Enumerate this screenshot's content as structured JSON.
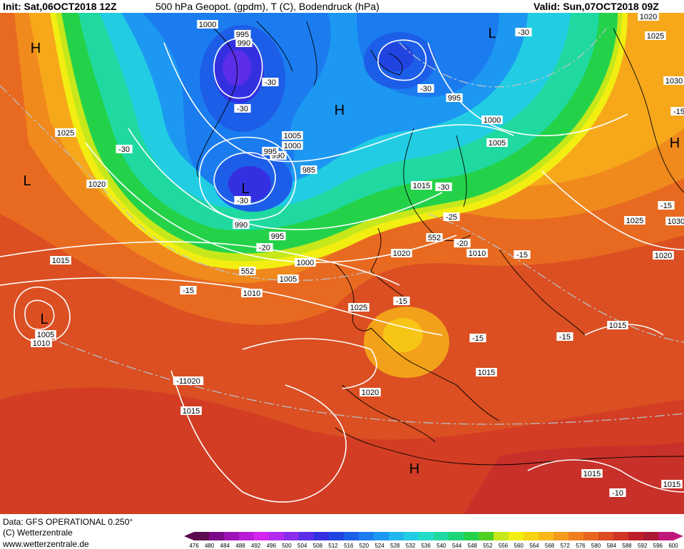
{
  "header": {
    "init": "Init: Sat,06OCT2018 12Z",
    "title": "500 hPa Geopot. (gpdm), T (C), Bodendruck (hPa)",
    "valid": "Valid: Sun,07OCT2018 09Z"
  },
  "footer": {
    "data_line": "Data: GFS OPERATIONAL 0.250°",
    "copyright": "(C) Wetterzentrale",
    "url": "www.wetterzentrale.de"
  },
  "colorbar": {
    "ticks": [
      "476",
      "480",
      "484",
      "488",
      "492",
      "496",
      "500",
      "504",
      "508",
      "512",
      "516",
      "520",
      "524",
      "528",
      "532",
      "536",
      "540",
      "544",
      "548",
      "552",
      "556",
      "560",
      "564",
      "568",
      "572",
      "576",
      "580",
      "584",
      "588",
      "592",
      "596",
      "600"
    ],
    "colors": [
      "#5a0a4e",
      "#7a0a86",
      "#9c13b6",
      "#b91cd6",
      "#d225f0",
      "#b32aef",
      "#8a2cec",
      "#5b2de9",
      "#3430e2",
      "#2143e0",
      "#1d5ee8",
      "#1b7cf0",
      "#1d98f2",
      "#1fb6ee",
      "#22cde3",
      "#23dbc6",
      "#1fd9a0",
      "#1dd579",
      "#24d24a",
      "#4ed024",
      "#c6e81a",
      "#f2ee12",
      "#f7d412",
      "#f8b818",
      "#f59b1c",
      "#ef7f1e",
      "#e66621",
      "#db4c22",
      "#cf3424",
      "#bd1f2a",
      "#a91833",
      "#c0177c"
    ]
  },
  "map": {
    "pressure_labels": [
      {
        "t": "1020"
      },
      {
        "t": "1025"
      },
      {
        "t": "1030"
      },
      {
        "t": "1000"
      },
      {
        "t": "995"
      },
      {
        "t": "990"
      },
      {
        "t": "-30"
      },
      {
        "t": "-30"
      },
      {
        "t": "-30"
      },
      {
        "t": "-30"
      },
      {
        "t": "995"
      },
      {
        "t": "1000"
      },
      {
        "t": "1005"
      },
      {
        "t": "1025"
      },
      {
        "t": "-30"
      },
      {
        "t": "1005"
      },
      {
        "t": "1000"
      },
      {
        "t": "990"
      },
      {
        "t": "995"
      },
      {
        "t": "985"
      },
      {
        "t": "1020"
      },
      {
        "t": "-30"
      },
      {
        "t": "1015"
      },
      {
        "t": "-30"
      },
      {
        "t": "-25"
      },
      {
        "t": "-20"
      },
      {
        "t": "552"
      },
      {
        "t": "1025"
      },
      {
        "t": "-15"
      },
      {
        "t": "1030"
      },
      {
        "t": "990"
      },
      {
        "t": "995"
      },
      {
        "t": "-20"
      },
      {
        "t": "1000"
      },
      {
        "t": "1005"
      },
      {
        "t": "552"
      },
      {
        "t": "1010"
      },
      {
        "t": "-15"
      },
      {
        "t": "1015"
      },
      {
        "t": "1005"
      },
      {
        "t": "1010"
      },
      {
        "t": "1025"
      },
      {
        "t": "-15"
      },
      {
        "t": "1020"
      },
      {
        "t": "1010"
      },
      {
        "t": "-15"
      },
      {
        "t": "1020"
      },
      {
        "t": "1015"
      },
      {
        "t": "-15"
      },
      {
        "t": "-15"
      },
      {
        "t": "1015"
      },
      {
        "t": "-11020"
      },
      {
        "t": "1020"
      },
      {
        "t": "1015"
      },
      {
        "t": "1015"
      },
      {
        "t": "-10"
      },
      {
        "t": "1015"
      },
      {
        "t": "-15"
      }
    ],
    "symbols": [
      {
        "t": "H"
      },
      {
        "t": "L"
      },
      {
        "t": "L"
      },
      {
        "t": "H"
      },
      {
        "t": "L"
      },
      {
        "t": "L"
      },
      {
        "t": "H"
      },
      {
        "t": "H"
      }
    ]
  }
}
